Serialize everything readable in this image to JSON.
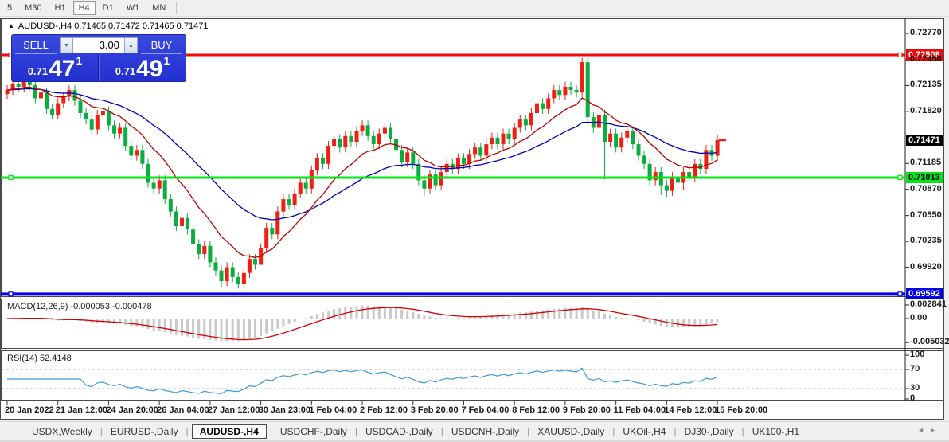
{
  "toolbar": {
    "timeframes": [
      "5",
      "M30",
      "H1",
      "H4",
      "D1",
      "W1",
      "MN"
    ],
    "active": "H4"
  },
  "chart": {
    "title": "AUDUSD-,H4",
    "ohlc": "0.71465 0.71472 0.71465 0.71471",
    "trade_panel": {
      "sell_label": "SELL",
      "buy_label": "BUY",
      "volume": "3.00",
      "sell_price": {
        "prefix": "0.71",
        "big": "47",
        "sup": "1"
      },
      "buy_price": {
        "prefix": "0.71",
        "big": "49",
        "sup": "1"
      }
    }
  },
  "macd_panel": {
    "label": "MACD(12,26,9) -0.000053 -0.000478"
  },
  "rsi_panel": {
    "label": "RSI(14) 52.4148"
  },
  "tabs": {
    "items": [
      "USDX,Weekly",
      "EURUSD-,Daily",
      "AUDUSD-,H4",
      "USDCHF-,Daily",
      "USDCAD-,Daily",
      "USDCNH-,Daily",
      "XAUUSD-,Daily",
      "UKOil-,H4",
      "DJ30-,Daily",
      "UK100-,H1"
    ],
    "active": "AUDUSD-,H4",
    "scroll_left": "◄",
    "scroll_right": "►"
  },
  "chart_data": {
    "type": "candlestick",
    "symbol": "AUDUSD-",
    "timeframe": "H4",
    "current_price": 0.71471,
    "price_axis_ticks": [
      0.7277,
      0.7245,
      0.72135,
      0.7182,
      0.71185,
      0.7087,
      0.7055,
      0.70235,
      0.6992
    ],
    "x_labels": [
      "20 Jan 2022",
      "21 Jan 12:00",
      "24 Jan 20:00",
      "26 Jan 04:00",
      "27 Jan 12:00",
      "30 Jan 23:00",
      "1 Feb 04:00",
      "2 Feb 12:00",
      "3 Feb 20:00",
      "7 Feb 04:00",
      "8 Feb 12:00",
      "9 Feb 20:00",
      "11 Feb 04:00",
      "14 Feb 12:00",
      "15 Feb 20:00"
    ],
    "candles_per_label": 9,
    "first_open": 0.7203,
    "closes": [
      0.7208,
      0.7215,
      0.7212,
      0.722,
      0.7214,
      0.7198,
      0.7205,
      0.7185,
      0.7178,
      0.7192,
      0.72,
      0.7208,
      0.7195,
      0.718,
      0.7172,
      0.716,
      0.7178,
      0.7182,
      0.7165,
      0.7155,
      0.7162,
      0.714,
      0.7128,
      0.7135,
      0.7118,
      0.7095,
      0.7088,
      0.7098,
      0.7075,
      0.706,
      0.7042,
      0.7052,
      0.7038,
      0.702,
      0.7008,
      0.7018,
      0.6998,
      0.6988,
      0.6975,
      0.6992,
      0.698,
      0.6972,
      0.6985,
      0.7002,
      0.6995,
      0.7015,
      0.704,
      0.7032,
      0.706,
      0.7075,
      0.7068,
      0.7082,
      0.7095,
      0.7088,
      0.711,
      0.7125,
      0.7118,
      0.714,
      0.7148,
      0.7138,
      0.7152,
      0.7145,
      0.7158,
      0.7165,
      0.7152,
      0.7142,
      0.7155,
      0.7162,
      0.7148,
      0.7135,
      0.712,
      0.7132,
      0.7118,
      0.7098,
      0.7088,
      0.7105,
      0.7092,
      0.7108,
      0.7118,
      0.7112,
      0.7125,
      0.7118,
      0.713,
      0.7138,
      0.7128,
      0.7142,
      0.715,
      0.7142,
      0.7155,
      0.7148,
      0.7162,
      0.7172,
      0.7165,
      0.718,
      0.7192,
      0.7185,
      0.7198,
      0.7208,
      0.7202,
      0.7212,
      0.7208,
      0.7205,
      0.7242,
      0.7175,
      0.7162,
      0.7178,
      0.7145,
      0.7155,
      0.7138,
      0.715,
      0.7158,
      0.7142,
      0.7128,
      0.7118,
      0.7098,
      0.7108,
      0.7092,
      0.7085,
      0.7102,
      0.7095,
      0.7108,
      0.7102,
      0.7118,
      0.7112,
      0.7135,
      0.7128,
      0.7147
    ],
    "default_wick": 0.0006,
    "wick_overrides": {
      "3": {
        "h": 0.7224
      },
      "5": {
        "h": 0.7226
      },
      "38": {
        "l": 0.6967
      },
      "41": {
        "l": 0.6966
      },
      "45": {
        "l": 0.6998
      },
      "74": {
        "l": 0.7079
      },
      "102": {
        "h": 0.7247
      },
      "103": {
        "l": 0.717
      },
      "106": {
        "l": 0.7099
      },
      "116": {
        "l": 0.708
      },
      "117": {
        "l": 0.7078
      },
      "120": {
        "l": 0.7086
      }
    },
    "colors": {
      "bull": "#ed2013",
      "bear": "#0bad41"
    },
    "ma_fast": {
      "period": 12,
      "color": "#c00000"
    },
    "ma_slow": {
      "period": 30,
      "color": "#0000b4"
    },
    "hlines": [
      {
        "name": "resistance",
        "price": 0.72508,
        "color": "#f00a0a",
        "text_color": "#ffffff"
      },
      {
        "name": "support",
        "price": 0.71013,
        "color": "#00e613",
        "text_color": "#000000"
      },
      {
        "name": "lower",
        "price": 0.69592,
        "color": "#0202e0",
        "text_color": "#ffffff"
      }
    ],
    "macd": {
      "fast": 12,
      "slow": 26,
      "signal": 9,
      "histogram_color": "#c9c9c9",
      "signal_color": "#d40000",
      "scale_ticks": [
        0.002841,
        0,
        -0.005032
      ]
    },
    "rsi": {
      "period": 14,
      "levels": [
        70,
        30
      ],
      "color": "#3e9ad9",
      "scale_ticks": [
        100,
        70,
        30,
        0
      ]
    }
  }
}
